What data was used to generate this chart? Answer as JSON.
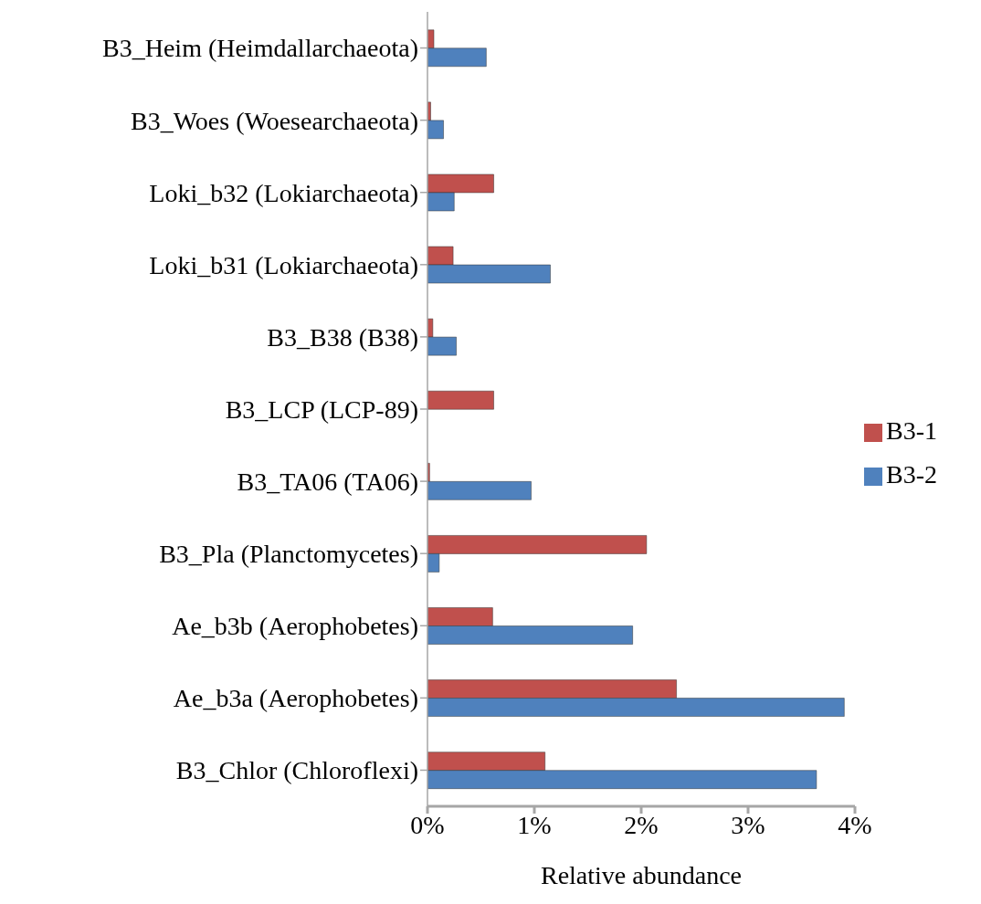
{
  "chart_data": {
    "type": "bar",
    "orientation": "horizontal",
    "xlabel": "Relative abundance",
    "categories": [
      "B3_Heim (Heimdallarchaeota)",
      "B3_Woes (Woesearchaeota)",
      "Loki_b32 (Lokiarchaeota)",
      "Loki_b31 (Lokiarchaeota)",
      "B3_B38 (B38)",
      "B3_LCP (LCP-89)",
      "B3_TA06 (TA06)",
      "B3_Pla (Planctomycetes)",
      "Ae_b3b (Aerophobetes)",
      "Ae_b3a (Aerophobetes)",
      "B3_Chlor (Chloroflexi)"
    ],
    "series": [
      {
        "name": "B3-1",
        "color": "#c0504d",
        "values": [
          0.06,
          0.03,
          0.62,
          0.24,
          0.05,
          0.62,
          0.02,
          2.05,
          0.61,
          2.33,
          1.1
        ]
      },
      {
        "name": "B3-2",
        "color": "#4f81bd",
        "values": [
          0.55,
          0.15,
          0.25,
          1.15,
          0.27,
          null,
          0.97,
          0.11,
          1.92,
          3.9,
          3.64
        ]
      }
    ],
    "xlim": [
      0,
      4
    ],
    "xticks": [
      {
        "value": 0,
        "label": "0%"
      },
      {
        "value": 1,
        "label": "1%"
      },
      {
        "value": 2,
        "label": "2%"
      },
      {
        "value": 3,
        "label": "3%"
      },
      {
        "value": 4,
        "label": "4%"
      }
    ],
    "grid": false,
    "legend": "right"
  }
}
